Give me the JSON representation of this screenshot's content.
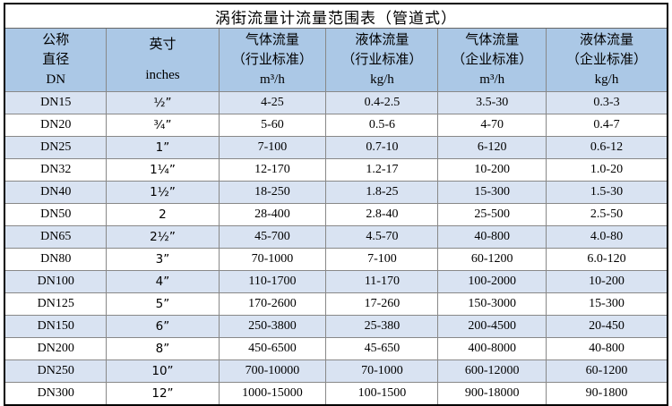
{
  "table": {
    "title": "涡街流量计流量范围表（管道式）",
    "columns": [
      {
        "id": "dn",
        "lines": [
          "公称",
          "直径",
          "DN"
        ]
      },
      {
        "id": "inches",
        "lines": [
          "英寸",
          "inches"
        ]
      },
      {
        "id": "gas-industry",
        "lines": [
          "气体流量",
          "（行业标准）",
          "m³/h"
        ]
      },
      {
        "id": "liquid-industry",
        "lines": [
          "液体流量",
          "（行业标准）",
          "kg/h"
        ]
      },
      {
        "id": "gas-enterprise",
        "lines": [
          "气体流量",
          "（企业标准）",
          "m³/h"
        ]
      },
      {
        "id": "liquid-enterprise",
        "lines": [
          "液体流量",
          "（企业标准）",
          "kg/h"
        ]
      }
    ],
    "rows": [
      [
        "DN15",
        "½”",
        "4-25",
        "0.4-2.5",
        "3.5-30",
        "0.3-3"
      ],
      [
        "DN20",
        "¾”",
        "5-60",
        "0.5-6",
        "4-70",
        "0.4-7"
      ],
      [
        "DN25",
        "1”",
        "7-100",
        "0.7-10",
        "6-120",
        "0.6-12"
      ],
      [
        "DN32",
        "1¼”",
        "12-170",
        "1.2-17",
        "10-200",
        "1.0-20"
      ],
      [
        "DN40",
        "1½”",
        "18-250",
        "1.8-25",
        "15-300",
        "1.5-30"
      ],
      [
        "DN50",
        "2",
        "28-400",
        "2.8-40",
        "25-500",
        "2.5-50"
      ],
      [
        "DN65",
        "2½”",
        "45-700",
        "4.5-70",
        "40-800",
        "4.0-80"
      ],
      [
        "DN80",
        "3”",
        "70-1000",
        "7-100",
        "60-1200",
        "6.0-120"
      ],
      [
        "DN100",
        "4”",
        "110-1700",
        "11-170",
        "100-2000",
        "10-200"
      ],
      [
        "DN125",
        "5”",
        "170-2600",
        "17-260",
        "150-3000",
        "15-300"
      ],
      [
        "DN150",
        "6”",
        "250-3800",
        "25-380",
        "200-4500",
        "20-450"
      ],
      [
        "DN200",
        "8”",
        "450-6500",
        "45-650",
        "400-8000",
        "40-800"
      ],
      [
        "DN250",
        "10”",
        "700-10000",
        "70-1000",
        "600-12000",
        "60-1200"
      ],
      [
        "DN300",
        "12”",
        "1000-15000",
        "100-1500",
        "900-18000",
        "90-1800"
      ]
    ],
    "colors": {
      "header_bg": "#abc8e6",
      "stripe_bg": "#d9e3f2",
      "row_bg": "#ffffff",
      "grid_line": "#888888",
      "outer_border": "#000000",
      "text": "#000000"
    }
  }
}
